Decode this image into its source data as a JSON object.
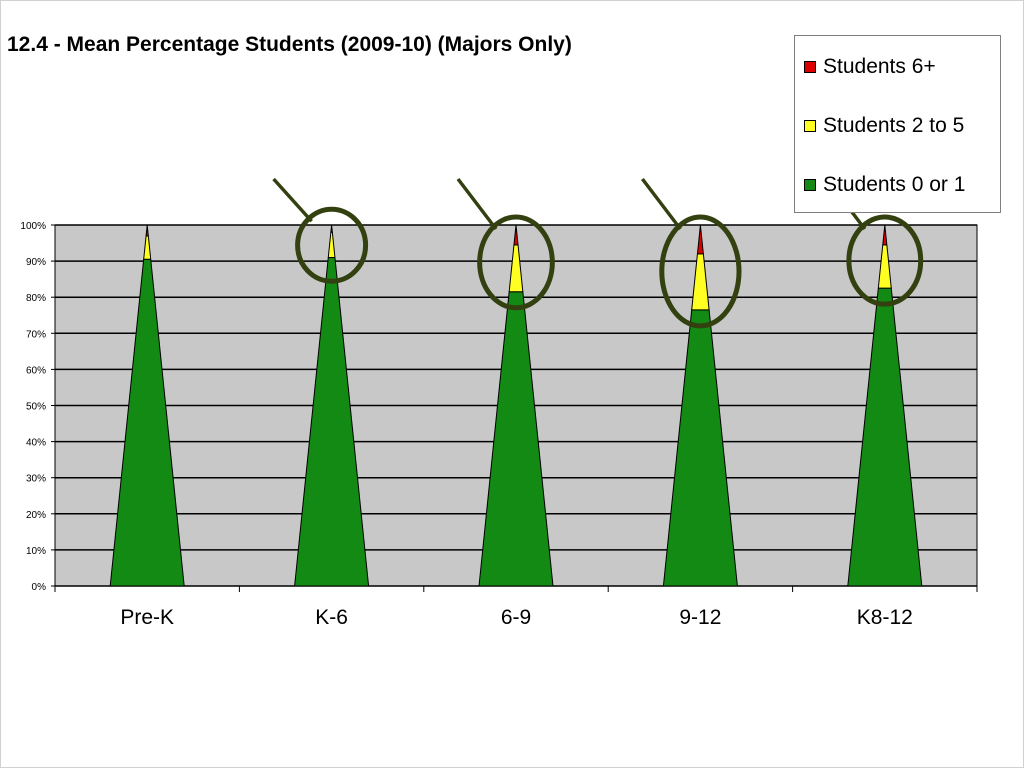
{
  "chart_data": {
    "type": "cone-stacked-column",
    "title": "12.4 - Mean Percentage Students (2009-10) (Majors Only)",
    "xlabel": "",
    "ylabel": "",
    "ylim": [
      0,
      100
    ],
    "y_ticks": [
      "0%",
      "10%",
      "20%",
      "30%",
      "40%",
      "50%",
      "60%",
      "70%",
      "80%",
      "90%",
      "100%"
    ],
    "grid": true,
    "legend_position": "top-right",
    "categories": [
      "Pre-K",
      "K-6",
      "6-9",
      "9-12",
      "K8-12"
    ],
    "series": [
      {
        "name": "Students 0 or 1",
        "color": "#138a13",
        "values": [
          90.5,
          91,
          81.5,
          76.5,
          82.5
        ]
      },
      {
        "name": "Students 2 to 5",
        "color": "#ffff22",
        "values": [
          6.5,
          7,
          13,
          15.5,
          12
        ]
      },
      {
        "name": "Students 6+",
        "color": "#dd0000",
        "values": [
          3,
          2,
          5.5,
          8,
          5.5
        ]
      }
    ],
    "plot_background": "#c8c8c8",
    "highlighted_categories": [
      "K-6",
      "6-9",
      "9-12",
      "K8-12"
    ],
    "highlight_color": "#334010"
  }
}
